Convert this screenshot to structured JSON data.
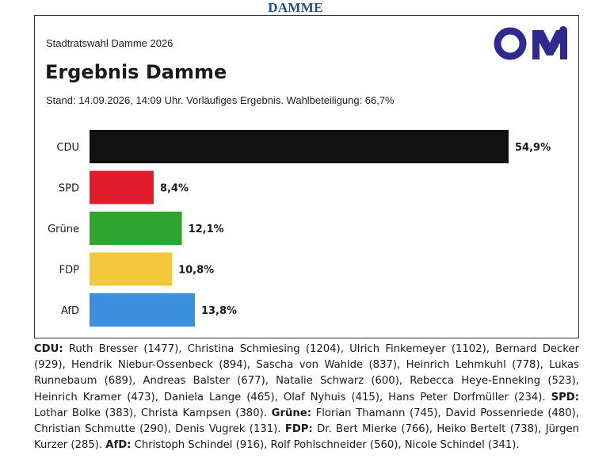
{
  "header": {
    "title": "DAMME"
  },
  "logo": {
    "text": "OM",
    "color": "#2f2a8f",
    "icon": "om-logo-icon"
  },
  "chart_data": {
    "type": "bar",
    "orientation": "horizontal",
    "subtitle": "Stadtratswahl Damme 2026",
    "title": "Ergebnis Damme",
    "note": "Stand: 14.09.2026, 14:09 Uhr. Vorläufiges Ergebnis. Wahlbeteiligung: 66,7%",
    "categories": [
      "CDU",
      "SPD",
      "Grüne",
      "FDP",
      "AfD"
    ],
    "values": [
      54.9,
      8.4,
      12.1,
      10.8,
      13.8
    ],
    "value_labels": [
      "54,9%",
      "8,4%",
      "12,1%",
      "10,8%",
      "13,8%"
    ],
    "colors": [
      "#111111",
      "#e01b2b",
      "#2fa52f",
      "#f3c73b",
      "#3c8fdd"
    ],
    "xlim": [
      0,
      54.9
    ],
    "grid": false,
    "legend": "none"
  },
  "caption": [
    {
      "party": "CDU:",
      "names": " Ruth Bresser (1477), Christina Schmiesing (1204), Ulrich Finkemeyer (1102), Bernard Decker (929), Hendrik Niebur-Ossenbeck (894), Sascha von Wahlde (837), Heinrich Lehmkuhl (778), Lukas Runnebaum (689), Andreas Balster (677), Natalie Schwarz (600), Rebecca Heye-Enneking (523), Heinrich Kramer (473), Daniela Lange (465), Olaf Nyhuis (415), Hans Peter Dorfmüller (234). "
    },
    {
      "party": "SPD:",
      "names": " Lothar Bolke (383), Christa Kampsen (380). "
    },
    {
      "party": "Grüne:",
      "names": " Florian Thamann (745), David Possenriede (480), Christian Schmutte (290), Denis Vugrek (131). "
    },
    {
      "party": "FDP:",
      "names": " Dr. Bert Mierke (766), Heiko Bertelt (738), Jürgen Kurzer (285). "
    },
    {
      "party": "AfD:",
      "names": " Christoph Schindel (916), Rolf Pohlschneider (560), Nicole Schindel (341)."
    }
  ]
}
